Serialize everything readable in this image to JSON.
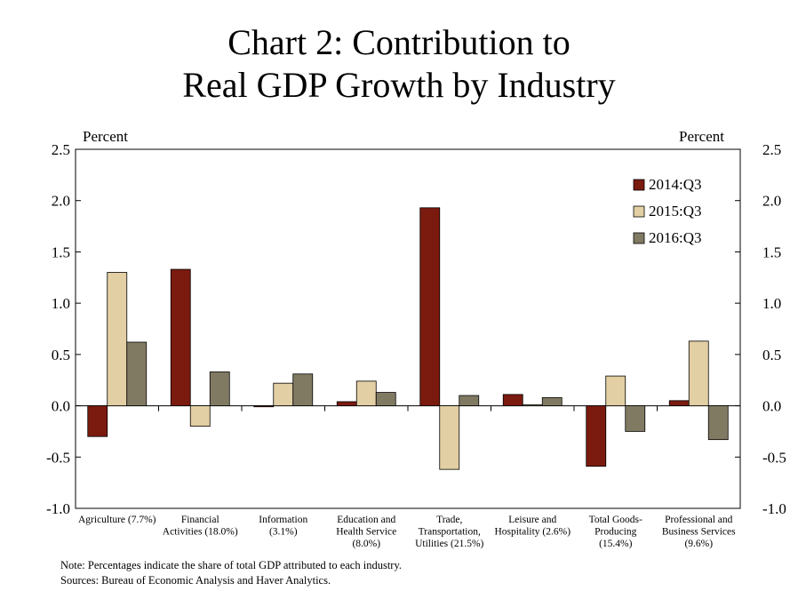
{
  "title": {
    "line1": "Chart 2: Contribution to",
    "line2": "Real GDP Growth by Industry"
  },
  "axis": {
    "left_unit": "Percent",
    "right_unit": "Percent"
  },
  "notes": {
    "note": "Note: Percentages indicate the share of total GDP attributed to each industry.",
    "sources": "Sources: Bureau of Economic Analysis and Haver Analytics."
  },
  "colors": {
    "2014:Q3": "#7B1A0F",
    "2015:Q3": "#E2CFA3",
    "2016:Q3": "#817A63"
  },
  "chart_data": {
    "type": "bar",
    "title": "Chart 2: Contribution to Real GDP Growth by Industry",
    "ylabel": "Percent",
    "ylim": [
      -1.0,
      2.5
    ],
    "yticks": [
      "2.5",
      "2.0",
      "1.5",
      "1.0",
      "0.5",
      "0.0",
      "-0.5",
      "-1.0"
    ],
    "grid": false,
    "legend_position": "top-right",
    "categories": [
      [
        "Agriculture (7.7%)"
      ],
      [
        "Financial",
        "Activities (18.0%)"
      ],
      [
        "Information",
        "(3.1%)"
      ],
      [
        "Education and",
        "Health Service",
        "(8.0%)"
      ],
      [
        "Trade,",
        "Transportation,",
        "Utilities (21.5%)"
      ],
      [
        "Leisure and",
        "Hospitality (2.6%)"
      ],
      [
        "Total Goods-",
        "Producing",
        "(15.4%)"
      ],
      [
        "Professional and",
        "Business Services",
        "(9.6%)"
      ]
    ],
    "series": [
      {
        "name": "2014:Q3",
        "values": [
          -0.3,
          1.33,
          -0.01,
          0.04,
          1.93,
          0.11,
          -0.59,
          0.05
        ]
      },
      {
        "name": "2015:Q3",
        "values": [
          1.3,
          -0.2,
          0.22,
          0.24,
          -0.62,
          0.01,
          0.29,
          0.63
        ]
      },
      {
        "name": "2016:Q3",
        "values": [
          0.62,
          0.33,
          0.31,
          0.13,
          0.1,
          0.08,
          -0.25,
          -0.33
        ]
      }
    ]
  }
}
